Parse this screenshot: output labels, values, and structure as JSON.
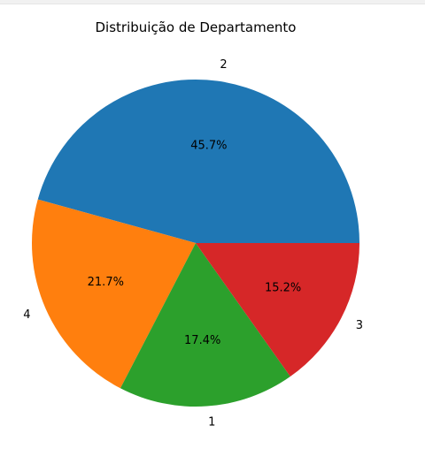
{
  "chart_data": {
    "type": "pie",
    "title": "Distribuição de Departamento",
    "start_angle_deg": 0,
    "direction": "counterclockwise",
    "slices": [
      {
        "label": "2",
        "percent": 45.7,
        "pct_text": "45.7%",
        "color": "#1f77b4"
      },
      {
        "label": "4",
        "percent": 21.7,
        "pct_text": "21.7%",
        "color": "#ff7f0e"
      },
      {
        "label": "1",
        "percent": 17.4,
        "pct_text": "17.4%",
        "color": "#2ca02c"
      },
      {
        "label": "3",
        "percent": 15.2,
        "pct_text": "15.2%",
        "color": "#d62728"
      }
    ]
  }
}
